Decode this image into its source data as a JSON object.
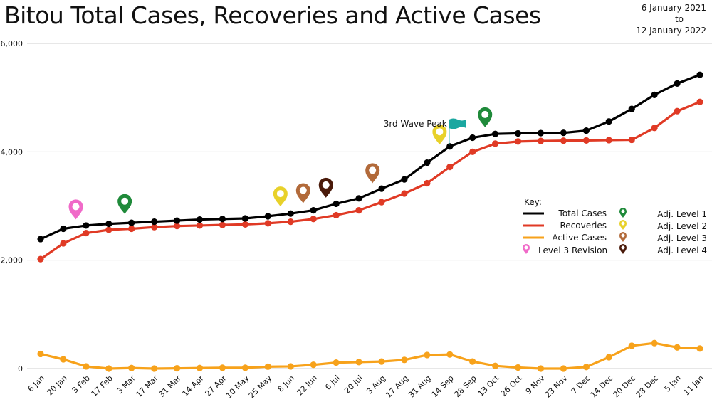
{
  "header": {
    "title": "Bitou Total Cases, Recoveries and Active Cases",
    "date_from": "6 January 2021",
    "date_to_word": "to",
    "date_to": "12 January 2022"
  },
  "legend": {
    "key_label": "Key:",
    "items": [
      {
        "label": "Total Cases",
        "color": "#000000",
        "kind": "line"
      },
      {
        "label": "Recoveries",
        "color": "#e03a25",
        "kind": "line"
      },
      {
        "label": "Active Cases",
        "color": "#f7a21b",
        "kind": "line"
      },
      {
        "label": "Level 3 Revision",
        "color": "#f06ac8",
        "kind": "pin"
      }
    ],
    "levels": [
      {
        "label": "Adj. Level 1",
        "color": "#1f8a3a"
      },
      {
        "label": "Adj. Level 2",
        "color": "#e8d12a"
      },
      {
        "label": "Adj. Level 3",
        "color": "#b26a3a"
      },
      {
        "label": "Adj. Level 4",
        "color": "#4a1a0a"
      }
    ]
  },
  "colors": {
    "total": "#000000",
    "recoveries": "#e03a25",
    "active": "#f7a21b",
    "grid": "#cfcfcf",
    "flag": "#1aa7a0"
  },
  "chart_data": {
    "type": "line",
    "title": "Bitou Total Cases, Recoveries and Active Cases",
    "xlabel": "",
    "ylabel": "",
    "ylim": [
      0,
      6000
    ],
    "yticks": [
      "0",
      "2,000",
      "4,000",
      "6,000"
    ],
    "grid": true,
    "legend_position": "right",
    "categories": [
      "6 Jan",
      "20 Jan",
      "3 Feb",
      "17 Feb",
      "3 Mar",
      "17 Mar",
      "31 Mar",
      "14 Apr",
      "27 Apr",
      "10 May",
      "25 May",
      "8 Jun",
      "22 Jun",
      "6 Jul",
      "20 Jul",
      "3 Aug",
      "17 Aug",
      "31 Aug",
      "14 Sep",
      "28 Sep",
      "13 Oct",
      "26 Oct",
      "9 Nov",
      "23 Nov",
      "7 Dec",
      "14 Dec",
      "20 Dec",
      "28 Dec",
      "5 Jan",
      "11 Jan"
    ],
    "series": [
      {
        "name": "Total Cases",
        "values": [
          2390,
          2580,
          2640,
          2670,
          2690,
          2710,
          2730,
          2750,
          2760,
          2770,
          2810,
          2860,
          2920,
          3040,
          3140,
          3320,
          3490,
          3800,
          4100,
          4260,
          4330,
          4340,
          4345,
          4350,
          4390,
          4560,
          4790,
          5050,
          5260,
          5420
        ]
      },
      {
        "name": "Recoveries",
        "values": [
          2020,
          2310,
          2500,
          2560,
          2580,
          2610,
          2630,
          2640,
          2650,
          2660,
          2680,
          2710,
          2760,
          2830,
          2920,
          3070,
          3230,
          3420,
          3720,
          4000,
          4150,
          4190,
          4200,
          4205,
          4210,
          4215,
          4220,
          4440,
          4750,
          4920
        ]
      },
      {
        "name": "Active Cases",
        "values": [
          270,
          170,
          40,
          0,
          10,
          0,
          5,
          10,
          15,
          15,
          35,
          40,
          70,
          110,
          120,
          130,
          160,
          250,
          260,
          130,
          50,
          20,
          0,
          0,
          30,
          210,
          420,
          470,
          390,
          370
        ]
      }
    ],
    "annotations": [
      {
        "text": "3rd Wave Peak",
        "category": "14 Sep"
      }
    ],
    "markers": [
      {
        "kind": "Level 3 Revision",
        "category_index": 1.55,
        "value": 2700
      },
      {
        "kind": "Adj. Level 1",
        "category_index": 3.7,
        "value": 2800
      },
      {
        "kind": "Adj. Level 2",
        "category_index": 10.55,
        "value": 2940
      },
      {
        "kind": "Adj. Level 3",
        "category_index": 11.55,
        "value": 3000
      },
      {
        "kind": "Adj. Level 4",
        "category_index": 12.55,
        "value": 3100
      },
      {
        "kind": "Adj. Level 3",
        "category_index": 14.6,
        "value": 3370
      },
      {
        "kind": "Adj. Level 2",
        "category_index": 17.55,
        "value": 4080
      },
      {
        "kind": "Adj. Level 1",
        "category_index": 19.55,
        "value": 4400
      }
    ]
  }
}
